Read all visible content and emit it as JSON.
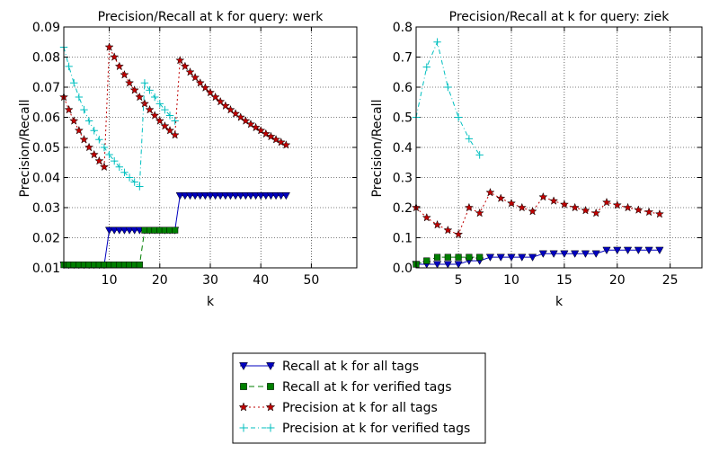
{
  "legend": {
    "placement": "bottom-center",
    "entries": [
      {
        "label": "Recall at k for all tags",
        "color": "#0000bf",
        "marker": "triangle-down",
        "linestyle": "solid"
      },
      {
        "label": "Recall at k for verified tags",
        "color": "#007f00",
        "marker": "square",
        "linestyle": "dashed"
      },
      {
        "label": "Precision at k for all tags",
        "color": "#bf0000",
        "marker": "star",
        "linestyle": "dotted"
      },
      {
        "label": "Precision at k for verified tags",
        "color": "#00bfbf",
        "marker": "plus",
        "linestyle": "dash-dot"
      }
    ]
  },
  "chart_data": [
    {
      "type": "line",
      "title": "Precision/Recall at k for query: werk",
      "xlabel": "k",
      "ylabel": "Precision/Recall",
      "xlim": [
        1,
        59
      ],
      "ylim": [
        0.01,
        0.09
      ],
      "xticks": [
        10,
        20,
        30,
        40,
        50
      ],
      "yticks": [
        0.01,
        0.02,
        0.03,
        0.04,
        0.05,
        0.06,
        0.07,
        0.08,
        0.09
      ],
      "ytick_labels": [
        "0.01",
        "0.02",
        "0.03",
        "0.04",
        "0.05",
        "0.06",
        "0.07",
        "0.08",
        "0.09"
      ],
      "grid": true,
      "series": [
        {
          "name": "Recall at k for all tags",
          "color": "#0000bf",
          "marker": "triangle-down",
          "linestyle": "solid",
          "x": [
            1,
            2,
            3,
            4,
            5,
            6,
            7,
            8,
            9,
            10,
            11,
            12,
            13,
            14,
            15,
            16,
            17,
            18,
            19,
            20,
            21,
            22,
            23,
            24,
            25,
            26,
            27,
            28,
            29,
            30,
            31,
            32,
            33,
            34,
            35,
            36,
            37,
            38,
            39,
            40,
            41,
            42,
            43,
            44,
            45
          ],
          "y": [
            0.011,
            0.011,
            0.011,
            0.011,
            0.011,
            0.011,
            0.011,
            0.011,
            0.011,
            0.0225,
            0.0225,
            0.0225,
            0.0225,
            0.0225,
            0.0225,
            0.0225,
            0.0225,
            0.0225,
            0.0225,
            0.0225,
            0.0225,
            0.0225,
            0.0225,
            0.034,
            0.034,
            0.034,
            0.034,
            0.034,
            0.034,
            0.034,
            0.034,
            0.034,
            0.034,
            0.034,
            0.034,
            0.034,
            0.034,
            0.034,
            0.034,
            0.034,
            0.034,
            0.034,
            0.034,
            0.034,
            0.034
          ]
        },
        {
          "name": "Recall at k for verified tags",
          "color": "#007f00",
          "marker": "square",
          "linestyle": "dashed",
          "x": [
            1,
            2,
            3,
            4,
            5,
            6,
            7,
            8,
            9,
            10,
            11,
            12,
            13,
            14,
            15,
            16,
            17,
            18,
            19,
            20,
            21,
            22,
            23
          ],
          "y": [
            0.011,
            0.011,
            0.011,
            0.011,
            0.011,
            0.011,
            0.011,
            0.011,
            0.011,
            0.011,
            0.011,
            0.011,
            0.011,
            0.011,
            0.011,
            0.011,
            0.0225,
            0.0225,
            0.0225,
            0.0225,
            0.0225,
            0.0225,
            0.0225
          ]
        },
        {
          "name": "Precision at k for all tags",
          "color": "#bf0000",
          "marker": "star",
          "linestyle": "dotted",
          "x": [
            1,
            2,
            3,
            4,
            5,
            6,
            7,
            8,
            9,
            10,
            11,
            12,
            13,
            14,
            15,
            16,
            17,
            18,
            19,
            20,
            21,
            22,
            23,
            24,
            25,
            26,
            27,
            28,
            29,
            30,
            31,
            32,
            33,
            34,
            35,
            36,
            37,
            38,
            39,
            40,
            41,
            42,
            43,
            44,
            45
          ],
          "y": [
            0.0667,
            0.0625,
            0.0588,
            0.0556,
            0.0526,
            0.05,
            0.0476,
            0.0455,
            0.0435,
            0.0833,
            0.08,
            0.0769,
            0.0741,
            0.0714,
            0.069,
            0.0667,
            0.0645,
            0.0625,
            0.0606,
            0.0588,
            0.0571,
            0.0556,
            0.0541,
            0.0789,
            0.0769,
            0.075,
            0.0732,
            0.0714,
            0.0698,
            0.0682,
            0.0667,
            0.0652,
            0.0638,
            0.0625,
            0.0612,
            0.06,
            0.0588,
            0.0577,
            0.0566,
            0.0556,
            0.0545,
            0.0536,
            0.0526,
            0.0517,
            0.0508
          ]
        },
        {
          "name": "Precision at k for verified tags",
          "color": "#00bfbf",
          "marker": "plus",
          "linestyle": "dash-dot",
          "x": [
            1,
            2,
            3,
            4,
            5,
            6,
            7,
            8,
            9,
            10,
            11,
            12,
            13,
            14,
            15,
            16,
            17,
            18,
            19,
            20,
            21,
            22,
            23
          ],
          "y": [
            0.0833,
            0.0769,
            0.0714,
            0.0667,
            0.0625,
            0.0588,
            0.0556,
            0.0526,
            0.05,
            0.0476,
            0.0455,
            0.0435,
            0.0417,
            0.04,
            0.0385,
            0.037,
            0.0714,
            0.069,
            0.0667,
            0.0645,
            0.0625,
            0.0606,
            0.0588
          ]
        }
      ]
    },
    {
      "type": "line",
      "title": "Precision/Recall at k for query: ziek",
      "xlabel": "k",
      "ylabel": "Precision/Recall",
      "xlim": [
        1,
        28
      ],
      "ylim": [
        0.0,
        0.8
      ],
      "xticks": [
        5,
        10,
        15,
        20,
        25
      ],
      "yticks": [
        0.0,
        0.1,
        0.2,
        0.3,
        0.4,
        0.5,
        0.6,
        0.7,
        0.8
      ],
      "ytick_labels": [
        "0.0",
        "0.1",
        "0.2",
        "0.3",
        "0.4",
        "0.5",
        "0.6",
        "0.7",
        "0.8"
      ],
      "grid": true,
      "series": [
        {
          "name": "Recall at k for all tags",
          "color": "#0000bf",
          "marker": "triangle-down",
          "linestyle": "solid",
          "x": [
            1,
            2,
            3,
            4,
            5,
            6,
            7,
            8,
            9,
            10,
            11,
            12,
            13,
            14,
            15,
            16,
            17,
            18,
            19,
            20,
            21,
            22,
            23,
            24
          ],
          "y": [
            0.0118,
            0.0118,
            0.0118,
            0.0118,
            0.0118,
            0.0235,
            0.0235,
            0.0353,
            0.0353,
            0.0353,
            0.0353,
            0.0353,
            0.0471,
            0.0471,
            0.0471,
            0.0471,
            0.0471,
            0.0471,
            0.0588,
            0.0588,
            0.0588,
            0.0588,
            0.0588,
            0.0588
          ]
        },
        {
          "name": "Recall at k for verified tags",
          "color": "#007f00",
          "marker": "square",
          "linestyle": "dashed",
          "x": [
            1,
            2,
            3,
            4,
            5,
            6,
            7
          ],
          "y": [
            0.0118,
            0.0235,
            0.0353,
            0.0353,
            0.0353,
            0.0353,
            0.0353
          ]
        },
        {
          "name": "Precision at k for all tags",
          "color": "#bf0000",
          "marker": "star",
          "linestyle": "dotted",
          "x": [
            1,
            2,
            3,
            4,
            5,
            6,
            7,
            8,
            9,
            10,
            11,
            12,
            13,
            14,
            15,
            16,
            17,
            18,
            19,
            20,
            21,
            22,
            23,
            24
          ],
          "y": [
            0.2,
            0.1667,
            0.1429,
            0.125,
            0.1111,
            0.2,
            0.1818,
            0.25,
            0.2308,
            0.2143,
            0.2,
            0.1875,
            0.2353,
            0.2222,
            0.2105,
            0.2,
            0.1905,
            0.1818,
            0.2174,
            0.2083,
            0.2,
            0.1923,
            0.1852,
            0.1786
          ]
        },
        {
          "name": "Precision at k for verified tags",
          "color": "#00bfbf",
          "marker": "plus",
          "linestyle": "dash-dot",
          "x": [
            1,
            2,
            3,
            4,
            5,
            6,
            7
          ],
          "y": [
            0.5,
            0.6667,
            0.75,
            0.6,
            0.5,
            0.4286,
            0.375
          ]
        }
      ]
    }
  ]
}
